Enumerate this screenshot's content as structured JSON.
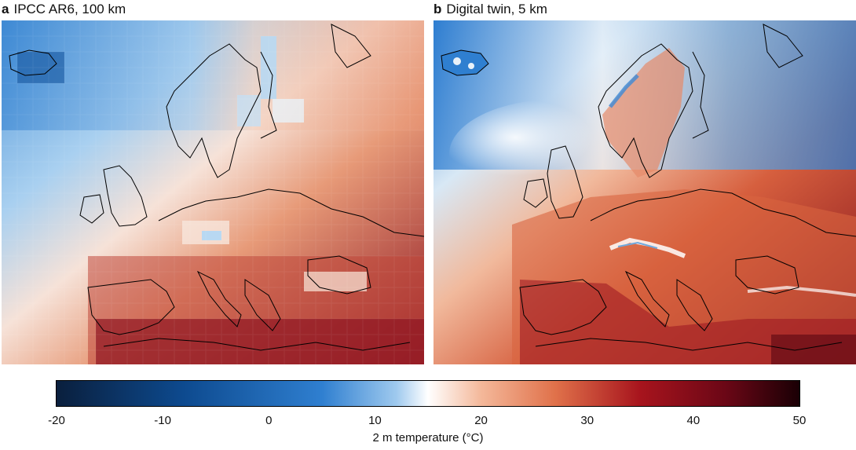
{
  "panels": [
    {
      "letter": "a",
      "title": "IPCC AR6, 100 km"
    },
    {
      "letter": "b",
      "title": "Digital twin, 5 km"
    }
  ],
  "colorbar": {
    "label": "2 m temperature (°C)",
    "min": -20,
    "max": 50,
    "ticks": [
      "-20",
      "-10",
      "0",
      "10",
      "20",
      "30",
      "40",
      "50"
    ],
    "colormap": [
      {
        "value": -20,
        "color": "#0a1f3d"
      },
      {
        "value": -8,
        "color": "#0d4a8f"
      },
      {
        "value": 5,
        "color": "#2f7fd0"
      },
      {
        "value": 12,
        "color": "#9ec9ee"
      },
      {
        "value": 15,
        "color": "#ffffff"
      },
      {
        "value": 20,
        "color": "#f4b89a"
      },
      {
        "value": 27,
        "color": "#e0714a"
      },
      {
        "value": 35,
        "color": "#a7141d"
      },
      {
        "value": 43,
        "color": "#6b0716"
      },
      {
        "value": 50,
        "color": "#1a0005"
      }
    ]
  },
  "colors": {
    "cold": "#2f7fd0",
    "neutral": "#ffffff",
    "warm": "#e0714a",
    "hot": "#a7141d",
    "coastline": "#000000"
  }
}
